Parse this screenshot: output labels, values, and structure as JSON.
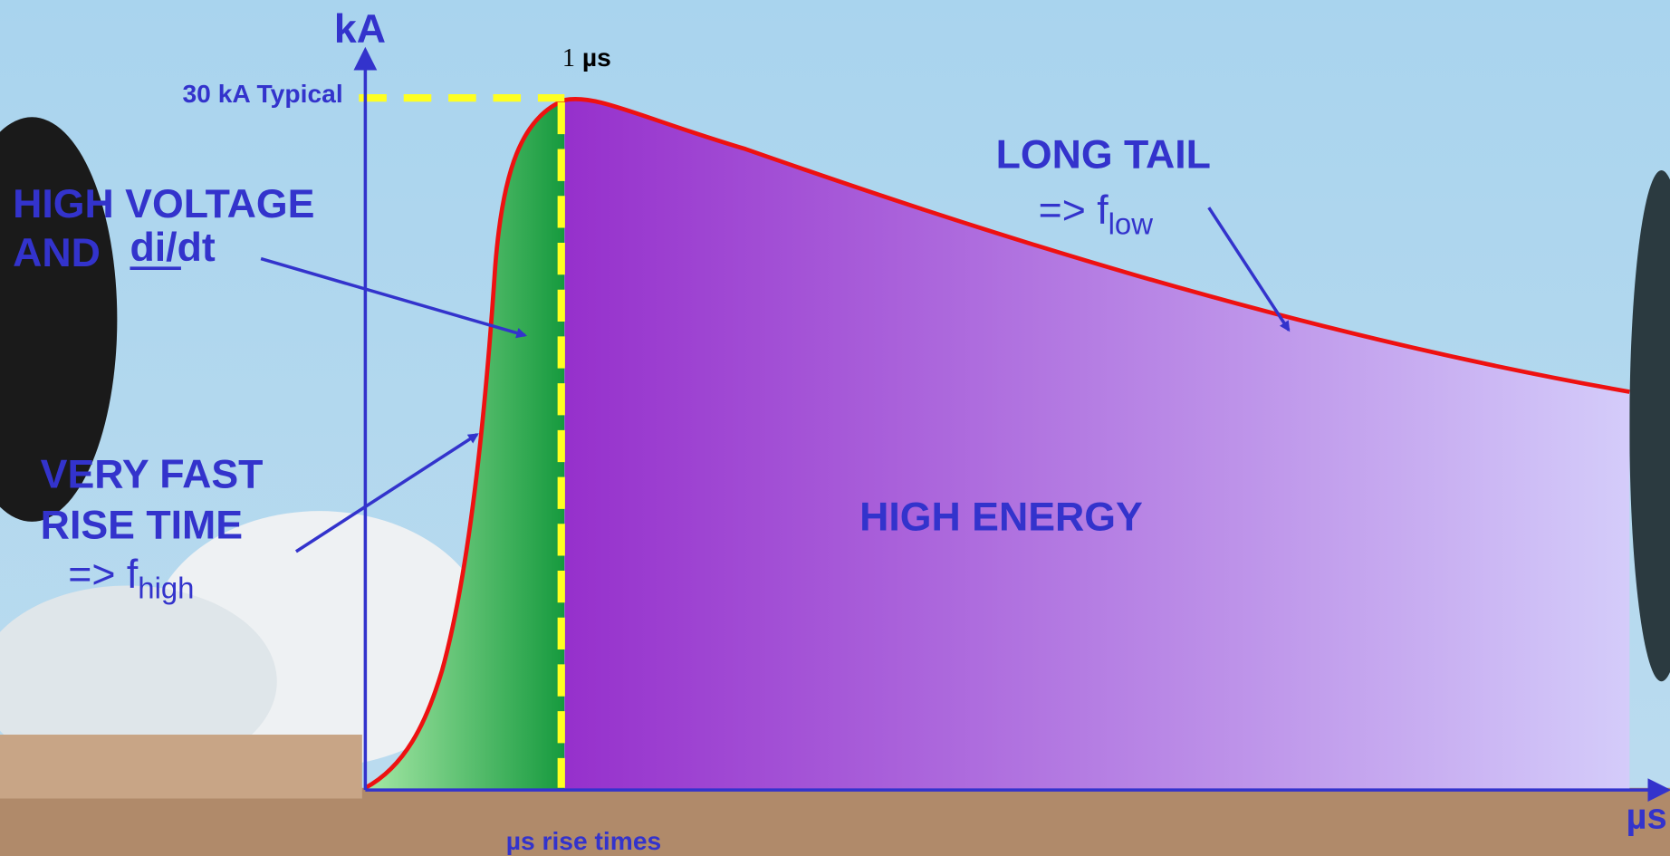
{
  "axes": {
    "y_label": "kA",
    "x_label": "µs"
  },
  "peak": {
    "label": "30 kA Typical",
    "time_value": "1",
    "time_unit": "µs"
  },
  "annotations": {
    "high_voltage": {
      "line1": "HIGH VOLTAGE",
      "line2": "AND",
      "term": "di/dt"
    },
    "fast_rise": {
      "line1": "VERY FAST",
      "line2": "RISE TIME",
      "arrow": "=> f",
      "subscript": "high"
    },
    "long_tail": {
      "title": "LONG TAIL",
      "arrow": "=> f",
      "subscript": "low"
    },
    "high_energy": "HIGH ENERGY",
    "rise_times": "µs rise times"
  }
}
